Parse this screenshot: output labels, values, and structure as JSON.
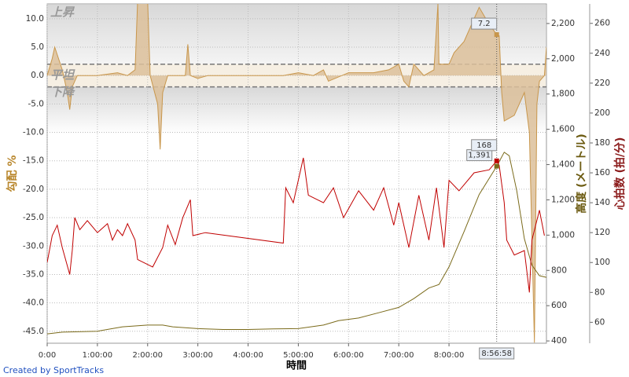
{
  "chart_data": {
    "type": "line",
    "xlabel": "時間",
    "ylabel": "勾配 %",
    "y2label": "高度 (メートル)",
    "y3label": "心拍数 (拍/分)",
    "credit": "Created by SportTracks",
    "xlim": [
      0,
      9.94
    ],
    "xticks": [
      {
        "value": 0,
        "label": "0:00"
      },
      {
        "value": 1,
        "label": "1:00:00"
      },
      {
        "value": 2,
        "label": "2:00:00"
      },
      {
        "value": 3,
        "label": "3:00:00"
      },
      {
        "value": 4,
        "label": "4:00:00"
      },
      {
        "value": 5,
        "label": "5:00:00"
      },
      {
        "value": 6,
        "label": "6:00:00"
      },
      {
        "value": 7,
        "label": "7:00:00"
      },
      {
        "value": 8,
        "label": "8:00:00"
      }
    ],
    "ylim": [
      -47.1,
      12.6
    ],
    "yticks": [
      {
        "value": 10,
        "label": "10.0"
      },
      {
        "value": 5,
        "label": "5.0"
      },
      {
        "value": 0,
        "label": "0.0"
      },
      {
        "value": -5,
        "label": "-5.0"
      },
      {
        "value": -10,
        "label": "-10.0"
      },
      {
        "value": -15,
        "label": "-15.0"
      },
      {
        "value": -20,
        "label": "-20.0"
      },
      {
        "value": -25,
        "label": "-25.0"
      },
      {
        "value": -30,
        "label": "-30.0"
      },
      {
        "value": -35,
        "label": "-35.0"
      },
      {
        "value": -40,
        "label": "-40.0"
      },
      {
        "value": -45,
        "label": "-45.0"
      }
    ],
    "y2lim": [
      387,
      2311
    ],
    "y2ticks": [
      {
        "value": 2200,
        "label": "2,200"
      },
      {
        "value": 2000,
        "label": "2,000"
      },
      {
        "value": 1800,
        "label": "1,800"
      },
      {
        "value": 1600,
        "label": "1,600"
      },
      {
        "value": 1400,
        "label": "1,400"
      },
      {
        "value": 1200,
        "label": "1,200"
      },
      {
        "value": 1000,
        "label": "1,000"
      },
      800,
      600,
      400
    ],
    "y3lim": [
      46,
      273
    ],
    "y3ticks": [
      260,
      240,
      220,
      200,
      180,
      160,
      140,
      120,
      100,
      80,
      60
    ],
    "grid": true,
    "zones": {
      "labels": [
        "上昇",
        "平坦",
        "下降"
      ],
      "bounds": [
        2,
        -2
      ]
    },
    "series": [
      {
        "axis": "y",
        "color": "#c8964b",
        "fill": "#dcc09a",
        "x": [
          0,
          0.1,
          0.15,
          0.3,
          0.4,
          0.45,
          0.5,
          0.6,
          1.0,
          1.4,
          1.6,
          1.75,
          1.8,
          2.0,
          2.05,
          2.2,
          2.25,
          2.3,
          2.4,
          2.75,
          2.8,
          2.85,
          3.0,
          3.2,
          4.0,
          4.7,
          5.0,
          5.3,
          5.5,
          5.6,
          6.0,
          6.5,
          6.8,
          7.0,
          7.1,
          7.2,
          7.3,
          7.5,
          7.7,
          7.78,
          7.8,
          8.0,
          8.1,
          8.3,
          8.6,
          8.8,
          8.95,
          9.0,
          9.05,
          9.1,
          9.3,
          9.5,
          9.6,
          9.7,
          9.75,
          9.8,
          9.9,
          9.94
        ],
        "values": [
          0,
          3,
          5,
          1,
          -3,
          -6,
          -2,
          0,
          0,
          0.5,
          0,
          1,
          13,
          13,
          0,
          -5,
          -13,
          -3,
          0,
          0,
          5.5,
          0,
          -0.5,
          0,
          0,
          0,
          0.5,
          0,
          1,
          -1,
          0.5,
          0.5,
          1,
          2,
          -1,
          -2,
          2,
          0,
          1,
          12.6,
          2,
          2,
          4,
          6,
          12,
          9,
          7.2,
          7,
          -3,
          -8,
          -7,
          -3,
          -10,
          -47,
          -5,
          -1,
          0,
          5
        ]
      },
      {
        "axis": "y2",
        "color": "#7a6a1a",
        "x": [
          0,
          0.3,
          1.0,
          1.5,
          2.0,
          2.3,
          2.5,
          3.0,
          3.5,
          4.0,
          4.5,
          5.0,
          5.5,
          5.8,
          6.2,
          6.6,
          7.0,
          7.3,
          7.6,
          7.8,
          8.0,
          8.3,
          8.6,
          8.95,
          9.1,
          9.2,
          9.35,
          9.5,
          9.65,
          9.8,
          9.94
        ],
        "values": [
          440,
          450,
          455,
          480,
          490,
          490,
          480,
          470,
          465,
          465,
          468,
          470,
          490,
          515,
          530,
          560,
          590,
          640,
          700,
          720,
          820,
          1020,
          1230,
          1391,
          1470,
          1450,
          1250,
          980,
          830,
          770,
          760
        ]
      },
      {
        "axis": "y3",
        "color": "#c00000",
        "x": [
          0,
          0.1,
          0.2,
          0.3,
          0.45,
          0.5,
          0.55,
          0.65,
          0.8,
          1.0,
          1.2,
          1.3,
          1.4,
          1.5,
          1.6,
          1.75,
          1.8,
          2.1,
          2.3,
          2.4,
          2.55,
          2.7,
          2.85,
          2.9,
          3.15,
          4.7,
          4.75,
          4.9,
          5.1,
          5.2,
          5.5,
          5.7,
          5.9,
          6.2,
          6.5,
          6.7,
          6.9,
          7.0,
          7.2,
          7.4,
          7.6,
          7.75,
          7.9,
          8.0,
          8.2,
          8.5,
          8.8,
          8.95,
          9.0,
          9.1,
          9.15,
          9.3,
          9.5,
          9.6,
          9.65,
          9.8,
          9.9
        ],
        "values": [
          100,
          118,
          125,
          110,
          92,
          108,
          130,
          122,
          128,
          120,
          126,
          115,
          122,
          118,
          126,
          115,
          102,
          97,
          110,
          125,
          112,
          130,
          142,
          118,
          120,
          113,
          150,
          140,
          170,
          145,
          140,
          150,
          130,
          148,
          135,
          150,
          125,
          140,
          110,
          145,
          115,
          150,
          110,
          155,
          148,
          160,
          162,
          168,
          165,
          140,
          115,
          105,
          108,
          80,
          115,
          135,
          118
        ]
      }
    ],
    "cursor": {
      "x": 8.949,
      "label": "8:56:58",
      "values": [
        7.2,
        1391,
        168
      ],
      "value_labels": [
        "7.2",
        "1,391",
        "168"
      ]
    }
  }
}
